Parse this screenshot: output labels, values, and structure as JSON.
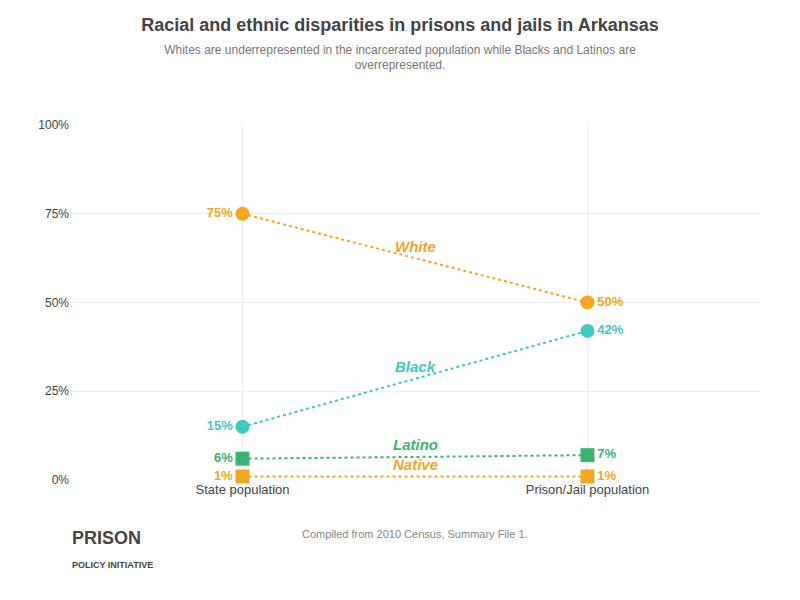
{
  "chart_data": {
    "type": "line",
    "title": "Racial and ethnic disparities in prisons and jails in Arkansas",
    "subtitle": "Whites are underrepresented in the incarcerated population while Blacks and Latinos are\noverrepresented.",
    "categories": [
      "State population",
      "Prison/Jail population"
    ],
    "series": [
      {
        "name": "White",
        "color": "#f5a623",
        "marker": "circle",
        "line_style": "dotted",
        "values": [
          75,
          50
        ],
        "value_labels": [
          "75%",
          "50%"
        ]
      },
      {
        "name": "Black",
        "color": "#40c8c8",
        "marker": "circle",
        "line_style": "dotted",
        "values": [
          15,
          42
        ],
        "value_labels": [
          "15%",
          "42%"
        ]
      },
      {
        "name": "Latino",
        "color": "#3cb371",
        "marker": "square",
        "line_style": "dotted",
        "values": [
          6,
          7
        ],
        "value_labels": [
          "6%",
          "7%"
        ]
      },
      {
        "name": "Native",
        "color": "#f5a623",
        "marker": "square",
        "line_style": "dotted",
        "values": [
          1,
          1
        ],
        "value_labels": [
          "1%",
          "1%"
        ]
      }
    ],
    "ylim": [
      0,
      100
    ],
    "yticks": [
      {
        "value": 0,
        "label": "0%"
      },
      {
        "value": 25,
        "label": "25%"
      },
      {
        "value": 50,
        "label": "50%"
      },
      {
        "value": 75,
        "label": "75%"
      },
      {
        "value": 100,
        "label": "100%"
      }
    ],
    "grid": true,
    "data_labels": true,
    "annotations": [
      "Compiled from 2010 Census, Summary File 1.",
      "PRISON",
      "POLICY INITIATIVE"
    ]
  }
}
